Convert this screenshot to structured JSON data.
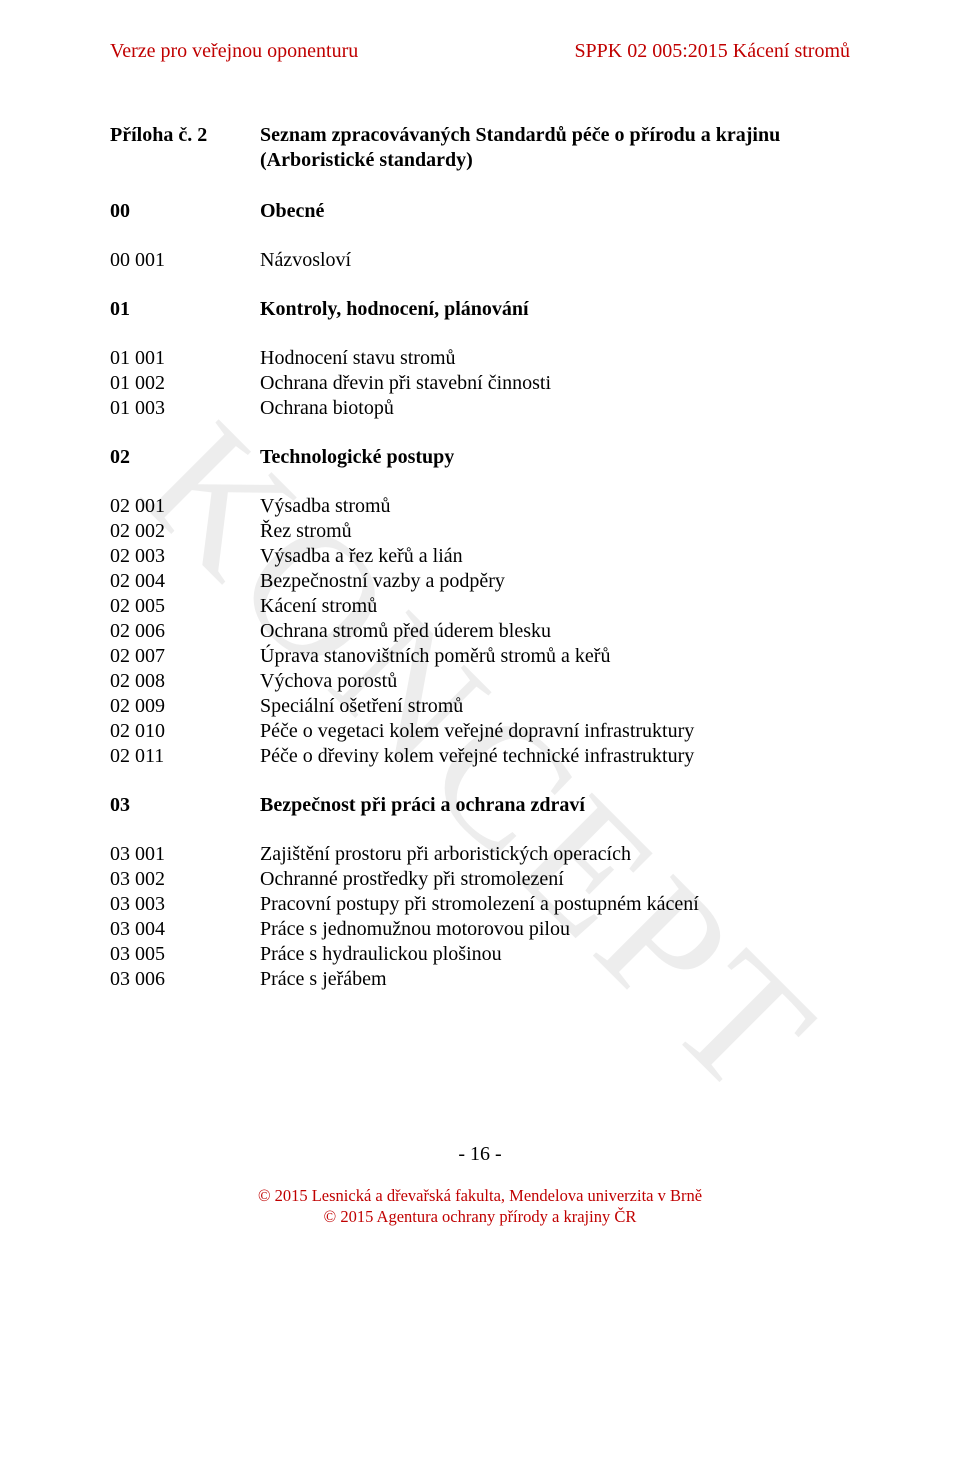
{
  "colors": {
    "header_text": "#c00000",
    "body_text": "#000000",
    "background": "#ffffff",
    "watermark": "rgba(0,0,0,0.07)"
  },
  "typography": {
    "font_family": "Times New Roman",
    "body_fontsize_pt": 15,
    "header_fontsize_pt": 15,
    "footer_fontsize_pt": 12.5,
    "watermark_fontsize_pt": 130
  },
  "header": {
    "left": "Verze pro veřejnou oponenturu",
    "right": "SPPK 02 005:2015 Kácení stromů"
  },
  "watermark": "KONCEPT",
  "title": {
    "code": "Příloha č. 2",
    "text": "Seznam zpracovávaných Standardů péče o přírodu a krajinu (Arboristické standardy)"
  },
  "section00": {
    "header": {
      "code": "00",
      "text": "Obecné"
    },
    "rows": [
      {
        "code": "00 001",
        "text": "Názvosloví"
      }
    ]
  },
  "section01": {
    "header": {
      "code": "01",
      "text": "Kontroly, hodnocení, plánování"
    },
    "rows": [
      {
        "code": "01 001",
        "text": "Hodnocení stavu stromů"
      },
      {
        "code": "01 002",
        "text": "Ochrana dřevin při stavební činnosti"
      },
      {
        "code": "01 003",
        "text": "Ochrana biotopů"
      }
    ]
  },
  "section02": {
    "header": {
      "code": "02",
      "text": "Technologické postupy"
    },
    "rows": [
      {
        "code": "02 001",
        "text": "Výsadba stromů"
      },
      {
        "code": "02 002",
        "text": "Řez stromů"
      },
      {
        "code": "02 003",
        "text": "Výsadba a řez keřů a lián"
      },
      {
        "code": "02 004",
        "text": "Bezpečnostní vazby a podpěry"
      },
      {
        "code": "02 005",
        "text": "Kácení stromů"
      },
      {
        "code": "02 006",
        "text": "Ochrana stromů před úderem blesku"
      },
      {
        "code": "02 007",
        "text": "Úprava stanovištních poměrů stromů a keřů"
      },
      {
        "code": "02 008",
        "text": "Výchova porostů"
      },
      {
        "code": "02 009",
        "text": "Speciální ošetření stromů"
      },
      {
        "code": "02 010",
        "text": "Péče o vegetaci kolem veřejné dopravní infrastruktury"
      },
      {
        "code": "02 011",
        "text": "Péče o dřeviny kolem veřejné technické infrastruktury"
      }
    ]
  },
  "section03": {
    "header": {
      "code": "03",
      "text": "Bezpečnost při práci a ochrana zdraví"
    },
    "rows": [
      {
        "code": "03 001",
        "text": "Zajištění prostoru při arboristických operacích"
      },
      {
        "code": "03 002",
        "text": "Ochranné prostředky při stromolezení"
      },
      {
        "code": "03 003",
        "text": "Pracovní postupy při stromolezení a postupném kácení"
      },
      {
        "code": "03 004",
        "text": "Práce s jednomužnou motorovou pilou"
      },
      {
        "code": "03 005",
        "text": "Práce s hydraulickou plošinou"
      },
      {
        "code": "03 006",
        "text": "Práce s jeřábem"
      }
    ]
  },
  "page_number": "- 16 -",
  "footer": {
    "line1": "© 2015   Lesnická a dřevařská fakulta, Mendelova univerzita v Brně",
    "line2": "© 2015   Agentura ochrany přírody a krajiny ČR"
  }
}
